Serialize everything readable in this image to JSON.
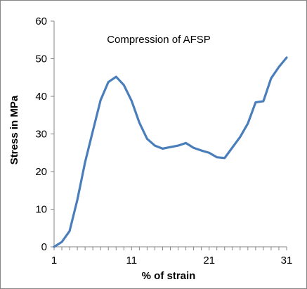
{
  "chart_data": {
    "type": "line",
    "annotation": "Compression of AFSP",
    "xlabel": "% of  strain",
    "ylabel": "Stress in MPa",
    "ylim": [
      0,
      60
    ],
    "y_ticks": [
      0,
      10,
      20,
      30,
      40,
      50,
      60
    ],
    "xlim": [
      1,
      31
    ],
    "x_ticks": [
      1,
      11,
      21,
      31
    ],
    "grid": false,
    "legend": "none",
    "line_color": "#4A7EBB",
    "series": [
      {
        "x": [
          1,
          2,
          3,
          4,
          5,
          6,
          7,
          8,
          9,
          10,
          11,
          12,
          13,
          14,
          15,
          16,
          17,
          18,
          19,
          20,
          21,
          22,
          23,
          24,
          25,
          26,
          27,
          28,
          29,
          30,
          31
        ],
        "values": [
          0,
          1.3,
          4.2,
          12.5,
          22.5,
          30.8,
          39,
          43.8,
          45.2,
          43,
          38.8,
          33,
          28.7,
          26.9,
          26.1,
          26.5,
          26.9,
          27.6,
          26.3,
          25.6,
          25,
          23.8,
          23.6,
          26.4,
          29.2,
          32.8,
          38.4,
          38.7,
          44.8,
          47.8,
          50.3
        ]
      }
    ]
  }
}
